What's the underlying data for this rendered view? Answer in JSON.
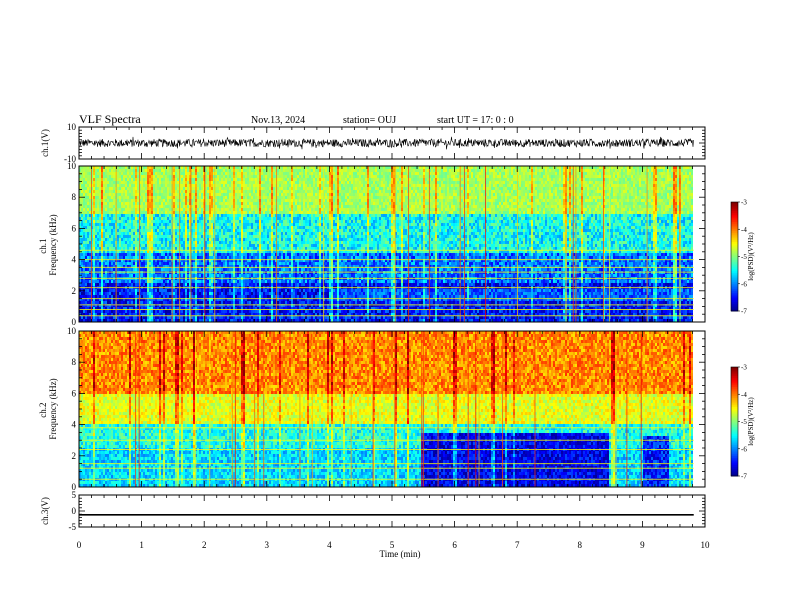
{
  "header": {
    "title": "VLF Spectra",
    "date": "Nov.13, 2024",
    "station": "station= OUJ",
    "start": "start  UT  =   17: 0   : 0"
  },
  "chart_data": [
    {
      "id": "ch1-waveform",
      "type": "line",
      "ylabel": "ch.1(V)",
      "ylim": [
        -10,
        10
      ],
      "y_ticks": [
        "10",
        "-10"
      ],
      "xlim": [
        0,
        10
      ],
      "data_end_min": 9.82,
      "mean_value": 0,
      "approx_amplitude": 2.5
    },
    {
      "id": "ch1-spectrogram",
      "type": "heatmap",
      "ylabel": "ch.1\nFrequency  (kHz)",
      "ylim": [
        0,
        10
      ],
      "y_ticks": [
        "0",
        "2",
        "4",
        "6",
        "8",
        "10"
      ],
      "xlim": [
        0,
        10
      ],
      "data_end_min": 9.82,
      "color_scale": {
        "label": "log(PSD)(V²/Hz)",
        "min": -7,
        "max": -3,
        "ticks": [
          "-3",
          "-4",
          "-5",
          "-6",
          "-7"
        ]
      }
    },
    {
      "id": "ch2-spectrogram",
      "type": "heatmap",
      "ylabel": "ch.2\nFrequency  (kHz)",
      "ylim": [
        0,
        10
      ],
      "y_ticks": [
        "0",
        "2",
        "4",
        "6",
        "8",
        "10"
      ],
      "xlim": [
        0,
        10
      ],
      "data_end_min": 9.82,
      "color_scale": {
        "label": "log(PSD)(V²/Hz)",
        "min": -7,
        "max": -3,
        "ticks": [
          "-3",
          "-4",
          "-5",
          "-6",
          "-7"
        ]
      }
    },
    {
      "id": "ch3-waveform",
      "type": "line",
      "ylabel": "ch.3(V)",
      "ylim": [
        -5,
        5
      ],
      "y_ticks": [
        "5",
        "0",
        "-5"
      ],
      "xlim": [
        0,
        10
      ],
      "data_end_min": 9.82,
      "constant_value": -1.2
    }
  ],
  "x_axis": {
    "label": "Time  (min)",
    "ticks": [
      "0",
      "1",
      "2",
      "3",
      "4",
      "5",
      "6",
      "7",
      "8",
      "9",
      "10"
    ]
  }
}
